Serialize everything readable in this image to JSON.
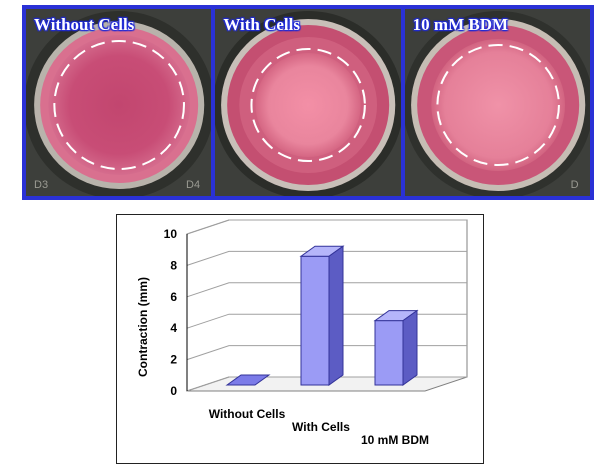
{
  "panels": [
    {
      "label": "Without Cells",
      "well_codes": [
        "D3",
        "D4"
      ]
    },
    {
      "label": "With Cells",
      "well_codes": []
    },
    {
      "label": "10 mM BDM",
      "well_codes": [
        "D"
      ]
    }
  ],
  "chart_data": {
    "type": "bar",
    "categories": [
      "Without Cells",
      "With Cells",
      "10 mM BDM"
    ],
    "values": [
      0,
      8.2,
      4.1
    ],
    "title": "",
    "xlabel": "",
    "ylabel": "Contraction (mm)",
    "ylim": [
      0,
      10
    ],
    "yticks": [
      "0",
      "2",
      "4",
      "6",
      "8",
      "10"
    ],
    "grid": true,
    "bar_color": "#9b9bf5"
  }
}
